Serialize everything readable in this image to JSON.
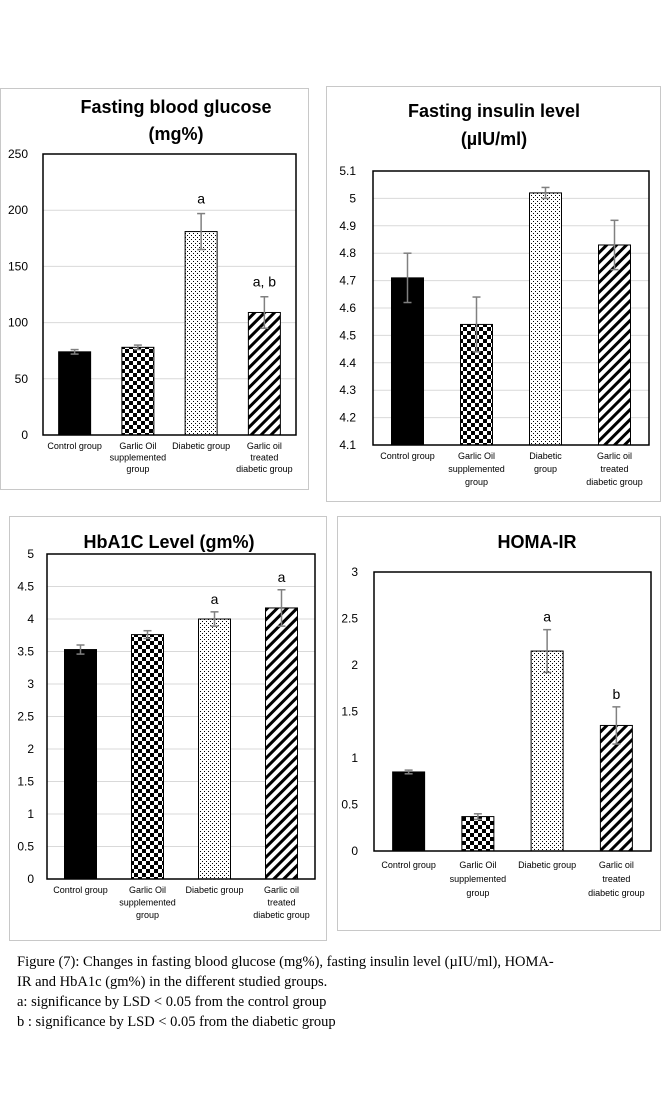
{
  "chart_data": [
    {
      "id": "glucose",
      "type": "bar",
      "title_lines": [
        "Fasting blood glucose",
        "(mg%)"
      ],
      "categories": [
        [
          "Control group"
        ],
        [
          "Garlic Oil",
          "supplemented",
          "group"
        ],
        [
          "Diabetic group"
        ],
        [
          "Garlic oil",
          "treated",
          "diabetic group"
        ]
      ],
      "values": [
        74,
        78,
        181,
        109
      ],
      "errors": [
        2,
        2,
        16,
        14
      ],
      "significance": [
        "",
        "",
        "a",
        "a, b"
      ],
      "patterns": [
        "solid",
        "checker",
        "dots",
        "diagonal"
      ],
      "ylim": [
        0,
        250
      ],
      "yticks": [
        "0",
        "50",
        "100",
        "150",
        "200",
        "250"
      ],
      "grid": true
    },
    {
      "id": "insulin",
      "type": "bar",
      "title_lines": [
        "Fasting insulin level",
        "(µIU/ml)"
      ],
      "categories": [
        [
          "Control group"
        ],
        [
          "Garlic Oil",
          "supplemented",
          "group"
        ],
        [
          "Diabetic",
          "group"
        ],
        [
          "Garlic oil",
          "treated",
          "diabetic group"
        ]
      ],
      "values": [
        4.71,
        4.54,
        5.02,
        4.83
      ],
      "errors": [
        0.09,
        0.1,
        0.02,
        0.09
      ],
      "significance": [
        "",
        "",
        "",
        ""
      ],
      "patterns": [
        "solid",
        "checker",
        "dots",
        "diagonal"
      ],
      "ylim": [
        4.1,
        5.1
      ],
      "yticks": [
        "4.1",
        "4.2",
        "4.3",
        "4.4",
        "4.5",
        "4.6",
        "4.7",
        "4.8",
        "4.9",
        "5",
        "5.1"
      ],
      "grid": true
    },
    {
      "id": "hba1c",
      "type": "bar",
      "title_lines": [
        "HbA1C Level (gm%)"
      ],
      "categories": [
        [
          "Control group"
        ],
        [
          "Garlic Oil",
          "supplemented",
          "group"
        ],
        [
          "Diabetic group"
        ],
        [
          "Garlic oil",
          "treated",
          "diabetic group"
        ]
      ],
      "values": [
        3.53,
        3.76,
        4.0,
        4.17
      ],
      "errors": [
        0.07,
        0.06,
        0.11,
        0.28
      ],
      "significance": [
        "",
        "",
        "a",
        "a"
      ],
      "patterns": [
        "solid",
        "checker",
        "dots",
        "diagonal"
      ],
      "ylim": [
        0,
        5
      ],
      "yticks": [
        "0",
        "0.5",
        "1",
        "1.5",
        "2",
        "2.5",
        "3",
        "3.5",
        "4",
        "4.5",
        "5"
      ],
      "grid": true
    },
    {
      "id": "homa",
      "type": "bar",
      "title_lines": [
        "HOMA-IR"
      ],
      "categories": [
        [
          "Control group"
        ],
        [
          "Garlic Oil",
          "supplemented",
          "group"
        ],
        [
          "Diabetic group"
        ],
        [
          "Garlic oil",
          "treated",
          "diabetic group"
        ]
      ],
      "values": [
        0.85,
        0.37,
        2.15,
        1.35
      ],
      "errors": [
        0.02,
        0.03,
        0.23,
        0.2
      ],
      "significance": [
        "",
        "",
        "a",
        "b"
      ],
      "patterns": [
        "solid",
        "checker",
        "dots",
        "diagonal"
      ],
      "ylim": [
        0,
        3
      ],
      "yticks": [
        "0",
        "0.5",
        "1",
        "1.5",
        "2",
        "2.5",
        "3"
      ],
      "grid": false
    }
  ],
  "caption": {
    "line1": "Figure (7): Changes in fasting blood glucose (mg%), fasting insulin level (µIU/ml), HOMA-",
    "line2": "IR and HbA1c (gm%) in the different studied groups.",
    "line3": "a: significance by LSD < 0.05 from the control group",
    "line4": "b : significance by LSD < 0.05 from the diabetic group"
  },
  "colors": {
    "bar_fill": "#000000",
    "axis": "#000000",
    "grid": "#d9d9d9",
    "error_bar": "#808080",
    "panel_border": "#c8c8c8"
  }
}
